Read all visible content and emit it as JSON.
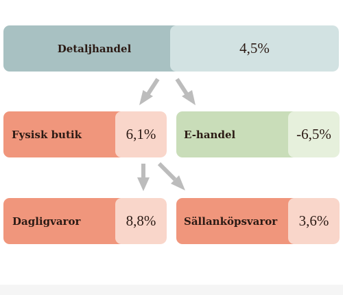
{
  "nodes": {
    "detaljhandel": {
      "label": "Detaljhandel",
      "value": "4,5%"
    },
    "fysisk_butik": {
      "label": "Fysisk butik",
      "value": "6,1%"
    },
    "e_handel": {
      "label": "E-handel",
      "value": "-6,5%"
    },
    "dagligvaror": {
      "label": "Dagligvaror",
      "value": "8,8%"
    },
    "sallankopsvaror": {
      "label": "Sällanköpsvaror",
      "value": "3,6%"
    }
  },
  "colors": {
    "root_label": "#a8c1c2",
    "root_value": "#d2e2e2",
    "red_label": "#f0967c",
    "red_value": "#f9d6ca",
    "green_label": "#c9ddb9",
    "green_value": "#e6f0dc",
    "arrow": "#bcbcbc",
    "text": "#2b1a14"
  },
  "arrows": [
    {
      "from": "detaljhandel",
      "to": "fysisk_butik"
    },
    {
      "from": "detaljhandel",
      "to": "e_handel"
    },
    {
      "from": "fysisk_butik",
      "to": "dagligvaror"
    },
    {
      "from": "fysisk_butik",
      "to": "sallankopsvaror"
    }
  ]
}
